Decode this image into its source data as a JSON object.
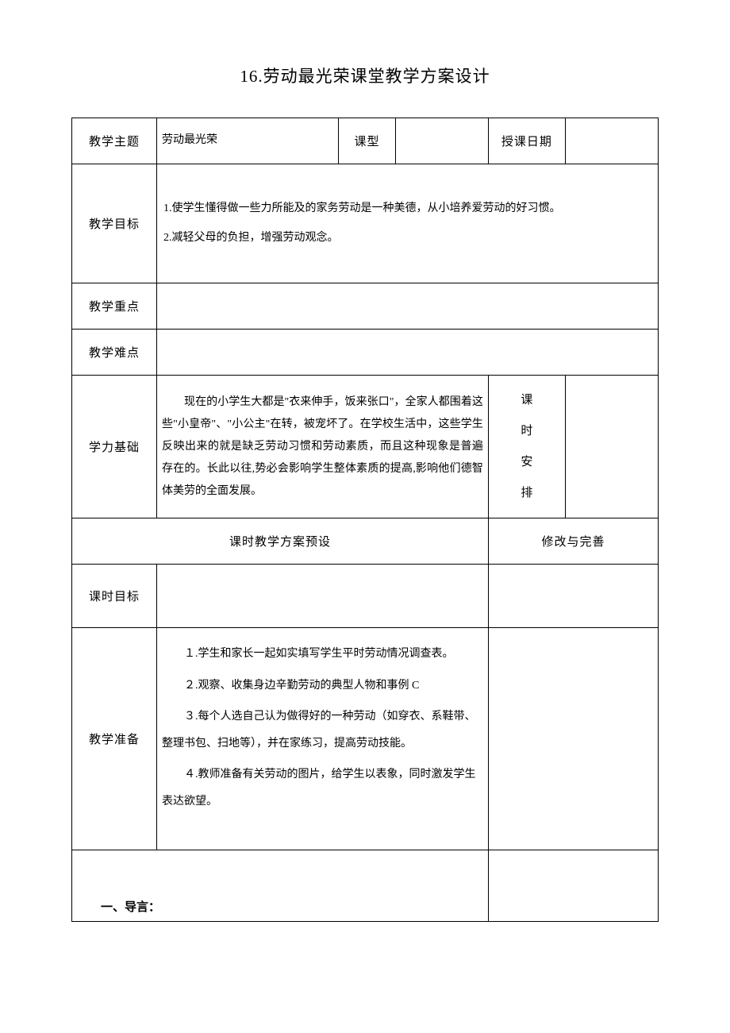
{
  "title": "16.劳动最光荣课堂教学方案设计",
  "labels": {
    "topic": "教学主题",
    "type": "课型",
    "date": "授课日期",
    "objectives": "教学目标",
    "focus": "教学重点",
    "difficulty": "教学难点",
    "foundation": "学力基础",
    "arrangement_1": "课",
    "arrangement_2": "时",
    "arrangement_3": "安",
    "arrangement_4": "排",
    "plan_header": "课时教学方案预设",
    "modify_header": "修改与完善",
    "period_goals": "课时目标",
    "preparation": "教学准备"
  },
  "values": {
    "topic": "劳动最光荣",
    "type": "",
    "date": "",
    "objective_1": "1.使学生懂得做一些力所能及的家务劳动是一种美德，从小培养爱劳动的好习惯。",
    "objective_2": "2.减轻父母的负担，增强劳动观念。",
    "focus": "",
    "difficulty": "",
    "foundation": "现在的小学生大都是\"衣来伸手，饭来张口\"，全家人都围着这些\"小皇帝\"、\"小公主\"在转，被宠坏了。在学校生活中，这些学生反映出来的就是缺乏劳动习惯和劳动素质，而且这种现象是普遍存在的。长此以往,势必会影响学生整体素质的提高,影响他们德智体美劳的全面发展。",
    "arrangement": "",
    "period_goals": "",
    "prep_1": "１.学生和家长一起如实填写学生平时劳动情况调查表。",
    "prep_2": "２.观察、收集身边辛勤劳动的典型人物和事例 C",
    "prep_3": "３.每个人选自己认为做得好的一种劳动（如穿衣、系鞋带、整理书包、扫地等），并在家练习，提高劳动技能。",
    "prep_4": "４.教师准备有关劳动的图片，给学生以表象，同时激发学生表达欲望。",
    "intro": "一、导言："
  }
}
